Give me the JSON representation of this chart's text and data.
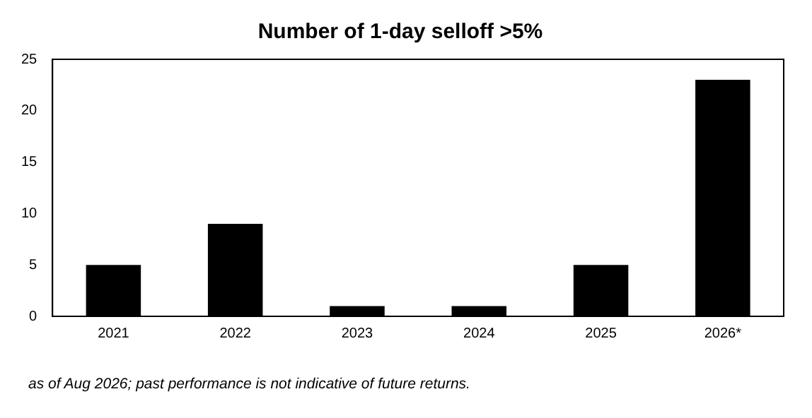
{
  "chart_data": {
    "type": "bar",
    "title": "Number of 1-day selloff >5%",
    "categories": [
      "2021",
      "2022",
      "2023",
      "2024",
      "2025",
      "2026*"
    ],
    "values": [
      5,
      9,
      1,
      1,
      5,
      23
    ],
    "color": "#000000",
    "ylim": [
      0,
      25
    ],
    "yticks": [
      0,
      5,
      10,
      15,
      20,
      25
    ],
    "grid": false,
    "legend": false,
    "annotations": [
      "as of Aug 2026; past performance is not indicative of future returns."
    ]
  }
}
